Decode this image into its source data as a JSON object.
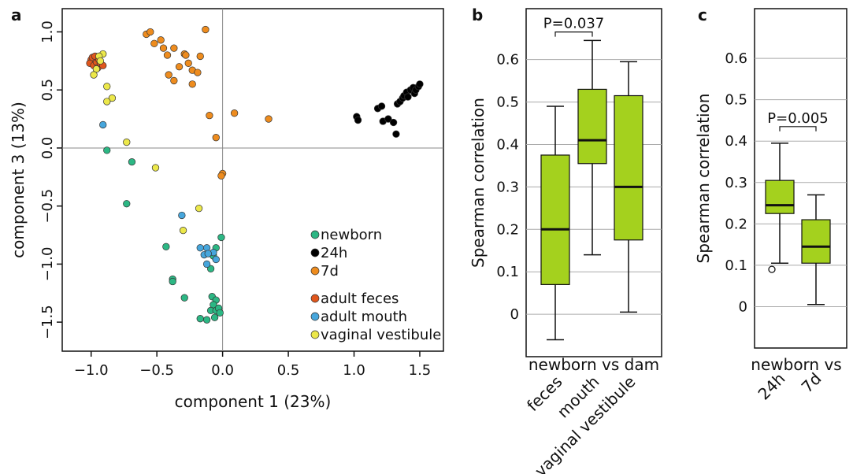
{
  "colors": {
    "newborn": "#2cb784",
    "24h": "#000000",
    "7d": "#ee8c1e",
    "adult feces": "#e0561c",
    "adult mouth": "#46a6dc",
    "vaginal vestibule": "#ece84a",
    "box_fill": "#a4d11e",
    "grid": "#aaaaaa"
  },
  "panels": {
    "a": {
      "letter": "a"
    },
    "b": {
      "letter": "b"
    },
    "c": {
      "letter": "c"
    }
  },
  "chart_data": [
    {
      "panel": "a",
      "type": "scatter",
      "xlabel": "component 1 (23%)",
      "ylabel": "component 3 (13%)",
      "xlim": [
        -1.22,
        1.68
      ],
      "ylim": [
        -1.75,
        1.2
      ],
      "xticks": [
        -1.0,
        -0.5,
        0.0,
        0.5,
        1.0,
        1.5
      ],
      "xtick_labels": [
        "−1.0",
        "−0.5",
        "0.0",
        "0.5",
        "1.0",
        "1.5"
      ],
      "yticks": [
        1.0,
        0.5,
        0.0,
        -0.5,
        -1.0,
        -1.5
      ],
      "ytick_labels": [
        "1.0",
        "0.5",
        "0.0",
        "−0.5",
        "−1.0",
        "−1.5"
      ],
      "grid": false,
      "zero_lines": true,
      "legend": {
        "placement": "bottom-right",
        "entries": [
          "newborn",
          "24h",
          "7d",
          "adult feces",
          "adult mouth",
          "vaginal vestibule"
        ]
      },
      "series": [
        {
          "name": "newborn",
          "points": [
            [
              -0.88,
              -0.02
            ],
            [
              -0.69,
              -0.12
            ],
            [
              -0.73,
              -0.48
            ],
            [
              -0.43,
              -0.85
            ],
            [
              -0.38,
              -1.13
            ],
            [
              -0.38,
              -1.15
            ],
            [
              -0.29,
              -1.29
            ],
            [
              -0.07,
              -0.93
            ],
            [
              -0.05,
              -0.86
            ],
            [
              -0.01,
              -0.77
            ],
            [
              -0.09,
              -1.04
            ],
            [
              -0.08,
              -1.28
            ],
            [
              -0.05,
              -1.31
            ],
            [
              -0.07,
              -1.35
            ],
            [
              -0.09,
              -1.4
            ],
            [
              -0.05,
              -1.4
            ],
            [
              -0.03,
              -1.38
            ],
            [
              -0.02,
              -1.42
            ],
            [
              -0.06,
              -1.46
            ],
            [
              -0.12,
              -1.48
            ],
            [
              -0.17,
              -1.47
            ]
          ]
        },
        {
          "name": "24h",
          "points": [
            [
              1.02,
              0.27
            ],
            [
              1.03,
              0.24
            ],
            [
              1.18,
              0.34
            ],
            [
              1.21,
              0.36
            ],
            [
              1.22,
              0.23
            ],
            [
              1.26,
              0.25
            ],
            [
              1.3,
              0.22
            ],
            [
              1.32,
              0.12
            ],
            [
              1.33,
              0.38
            ],
            [
              1.35,
              0.4
            ],
            [
              1.37,
              0.43
            ],
            [
              1.38,
              0.45
            ],
            [
              1.4,
              0.48
            ],
            [
              1.41,
              0.44
            ],
            [
              1.43,
              0.5
            ],
            [
              1.45,
              0.52
            ],
            [
              1.46,
              0.47
            ],
            [
              1.47,
              0.5
            ],
            [
              1.49,
              0.53
            ],
            [
              1.5,
              0.55
            ]
          ]
        },
        {
          "name": "7d",
          "points": [
            [
              -0.58,
              0.98
            ],
            [
              -0.55,
              1.0
            ],
            [
              -0.52,
              0.9
            ],
            [
              -0.47,
              0.93
            ],
            [
              -0.45,
              0.86
            ],
            [
              -0.42,
              0.8
            ],
            [
              -0.37,
              0.86
            ],
            [
              -0.33,
              0.7
            ],
            [
              -0.29,
              0.81
            ],
            [
              -0.26,
              0.73
            ],
            [
              -0.23,
              0.67
            ],
            [
              -0.17,
              0.79
            ],
            [
              -0.13,
              1.02
            ],
            [
              -0.19,
              0.65
            ],
            [
              -0.23,
              0.55
            ],
            [
              -0.28,
              0.8
            ],
            [
              -0.41,
              0.63
            ],
            [
              -0.37,
              0.58
            ],
            [
              -0.1,
              0.28
            ],
            [
              -0.05,
              0.09
            ],
            [
              0.09,
              0.3
            ],
            [
              0.35,
              0.25
            ],
            [
              0.0,
              -0.22
            ],
            [
              -0.01,
              -0.24
            ]
          ]
        },
        {
          "name": "adult feces",
          "points": [
            [
              -1.0,
              0.76
            ],
            [
              -1.01,
              0.73
            ],
            [
              -0.98,
              0.71
            ],
            [
              -0.96,
              0.74
            ],
            [
              -0.95,
              0.69
            ],
            [
              -0.93,
              0.73
            ],
            [
              -0.91,
              0.71
            ],
            [
              -0.99,
              0.78
            ],
            [
              -0.97,
              0.79
            ],
            [
              -0.94,
              0.76
            ]
          ]
        },
        {
          "name": "adult mouth",
          "points": [
            [
              -0.91,
              0.2
            ],
            [
              -0.31,
              -0.58
            ],
            [
              -0.17,
              -0.86
            ],
            [
              -0.14,
              -0.92
            ],
            [
              -0.12,
              -0.86
            ],
            [
              -0.07,
              -0.9
            ],
            [
              -0.05,
              -0.96
            ],
            [
              -0.12,
              -1.0
            ],
            [
              -0.11,
              -0.91
            ]
          ]
        },
        {
          "name": "vaginal vestibule",
          "points": [
            [
              -0.91,
              0.81
            ],
            [
              -0.94,
              0.79
            ],
            [
              -0.93,
              0.75
            ],
            [
              -0.96,
              0.68
            ],
            [
              -0.98,
              0.63
            ],
            [
              -0.88,
              0.53
            ],
            [
              -0.84,
              0.43
            ],
            [
              -0.88,
              0.4
            ],
            [
              -0.73,
              0.05
            ],
            [
              -0.51,
              -0.17
            ],
            [
              -0.18,
              -0.52
            ],
            [
              -0.3,
              -0.71
            ]
          ]
        }
      ]
    },
    {
      "panel": "b",
      "type": "box",
      "ylabel": "Spearman correlation",
      "group_label": "newborn vs dam",
      "ylim": [
        -0.1,
        0.72
      ],
      "yticks": [
        0,
        0.1,
        0.2,
        0.3,
        0.4,
        0.5,
        0.6
      ],
      "ytick_labels": [
        "0",
        "0.1",
        "0.2",
        "0.3",
        "0.4",
        "0.5",
        "0.6"
      ],
      "grid": true,
      "categories": [
        "feces",
        "mouth",
        "vaginal vestibule"
      ],
      "boxes": [
        {
          "whisker_low": -0.06,
          "q1": 0.07,
          "median": 0.2,
          "q3": 0.375,
          "whisker_high": 0.49,
          "outliers": []
        },
        {
          "whisker_low": 0.14,
          "q1": 0.355,
          "median": 0.41,
          "q3": 0.53,
          "whisker_high": 0.645,
          "outliers": []
        },
        {
          "whisker_low": 0.005,
          "q1": 0.175,
          "median": 0.3,
          "q3": 0.515,
          "whisker_high": 0.595,
          "outliers": []
        }
      ],
      "annotations": [
        {
          "text": "P=0.037",
          "between": [
            0,
            1
          ],
          "y": 0.665
        }
      ]
    },
    {
      "panel": "c",
      "type": "box",
      "ylabel": "Spearman correlation",
      "group_label": "newborn vs",
      "ylim": [
        -0.1,
        0.72
      ],
      "yticks": [
        0,
        0.1,
        0.2,
        0.3,
        0.4,
        0.5,
        0.6
      ],
      "ytick_labels": [
        "0",
        "0.1",
        "0.2",
        "0.3",
        "0.4",
        "0.5",
        "0.6"
      ],
      "grid": true,
      "categories": [
        "24h",
        "7d"
      ],
      "boxes": [
        {
          "whisker_low": 0.105,
          "q1": 0.225,
          "median": 0.245,
          "q3": 0.305,
          "whisker_high": 0.395,
          "outliers": [
            0.09
          ]
        },
        {
          "whisker_low": 0.005,
          "q1": 0.105,
          "median": 0.145,
          "q3": 0.21,
          "whisker_high": 0.27,
          "outliers": []
        }
      ],
      "annotations": [
        {
          "text": "P=0.005",
          "between": [
            0,
            1
          ],
          "y": 0.435
        }
      ]
    }
  ]
}
